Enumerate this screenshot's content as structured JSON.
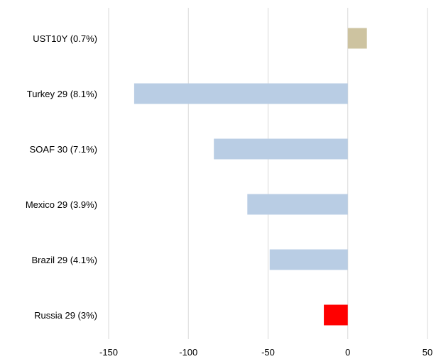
{
  "chart_data": {
    "type": "bar",
    "orientation": "horizontal",
    "title": "",
    "xlabel": "",
    "ylabel": "",
    "categories": [
      "UST10Y (0.7%)",
      "Turkey 29 (8.1%)",
      "SOAF 30 (7.1%)",
      "Mexico 29 (3.9%)",
      "Brazil 29 (4.1%)",
      "Russia 29 (3%)"
    ],
    "values": [
      12,
      -134,
      -84,
      -63,
      -49,
      -15
    ],
    "bar_colors": [
      "#cdc3a0",
      "#b9cde4",
      "#b9cde4",
      "#b9cde4",
      "#b9cde4",
      "#ff0000"
    ],
    "xlim": [
      -150,
      50
    ],
    "xticks": [
      -150,
      -100,
      -50,
      0,
      50
    ],
    "xtick_labels": [
      "-150",
      "-100",
      "-50",
      "0",
      "50"
    ],
    "grid": "vertical",
    "gridline_color": "#d9d9d9",
    "legend": "none"
  }
}
